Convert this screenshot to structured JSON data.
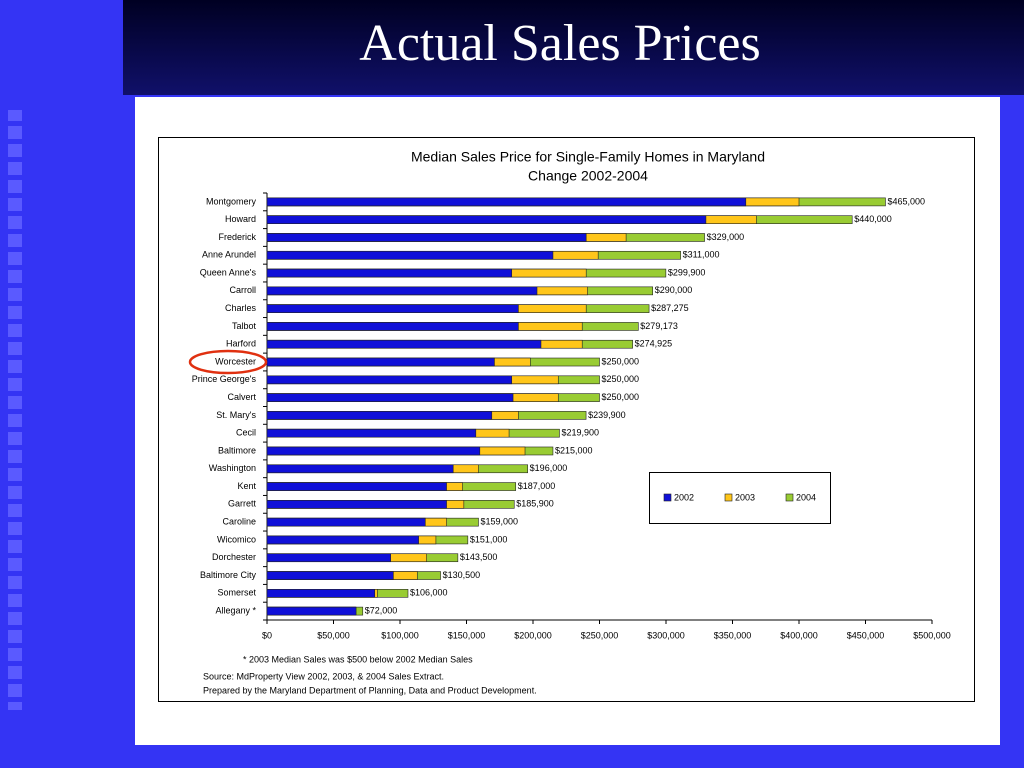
{
  "slide_title": "Actual Sales Prices",
  "chart_data": {
    "type": "bar",
    "orientation": "horizontal",
    "title": [
      "Median Sales Price for Single-Family Homes in Maryland",
      "Change 2002-2004"
    ],
    "categories": [
      "Montgomery",
      "Howard",
      "Frederick",
      "Anne Arundel",
      "Queen Anne's",
      "Carroll",
      "Charles",
      "Talbot",
      "Harford",
      "Worcester",
      "Prince George's",
      "Calvert",
      "St. Mary's",
      "Cecil",
      "Baltimore",
      "Washington",
      "Kent",
      "Garrett",
      "Caroline",
      "Wicomico",
      "Dorchester",
      "Baltimore City",
      "Somerset",
      "Allegany *"
    ],
    "series": [
      {
        "name": "2002",
        "color": "#1010d8",
        "values": [
          360000,
          330000,
          240000,
          215000,
          184000,
          203000,
          189000,
          189000,
          206000,
          171000,
          184000,
          185000,
          169000,
          157000,
          160000,
          140000,
          135000,
          135000,
          119000,
          114000,
          93000,
          95000,
          81000,
          67000
        ]
      },
      {
        "name": "2003",
        "color": "#ffc61a",
        "values": [
          400000,
          368000,
          270000,
          249000,
          240000,
          241000,
          240000,
          237000,
          237000,
          198000,
          219000,
          219000,
          189000,
          182000,
          194000,
          159000,
          147000,
          148000,
          135000,
          127000,
          120000,
          113000,
          83000,
          66500
        ]
      },
      {
        "name": "2004",
        "color": "#99cc33",
        "values": [
          465000,
          440000,
          329000,
          311000,
          299900,
          290000,
          287275,
          279173,
          274925,
          250000,
          250000,
          250000,
          239900,
          219900,
          215000,
          196000,
          187000,
          185900,
          159000,
          151000,
          143500,
          130500,
          106000,
          72000
        ],
        "value_labels": [
          "$465,000",
          "$440,000",
          "$329,000",
          "$311,000",
          "$299,900",
          "$290,000",
          "$287,275",
          "$279,173",
          "$274,925",
          "$250,000",
          "$250,000",
          "$250,000",
          "$239,900",
          "$219,900",
          "$215,000",
          "$196,000",
          "$187,000",
          "$185,900",
          "$159,000",
          "$151,000",
          "$143,500",
          "$130,500",
          "$106,000",
          "$72,000"
        ]
      }
    ],
    "xlim": [
      0,
      500000
    ],
    "xticks": [
      {
        "value": 0,
        "label": "$0"
      },
      {
        "value": 50000,
        "label": "$50,000"
      },
      {
        "value": 100000,
        "label": "$100,000"
      },
      {
        "value": 150000,
        "label": "$150,000"
      },
      {
        "value": 200000,
        "label": "$200,000"
      },
      {
        "value": 250000,
        "label": "$250,000"
      },
      {
        "value": 300000,
        "label": "$300,000"
      },
      {
        "value": 350000,
        "label": "$350,000"
      },
      {
        "value": 400000,
        "label": "$400,000"
      },
      {
        "value": 450000,
        "label": "$450,000"
      },
      {
        "value": 500000,
        "label": "$500,000"
      }
    ],
    "notes": [
      "* 2003 Median Sales was $500 below 2002 Median Sales",
      "Source: MdProperty View 2002, 2003, & 2004 Sales Extract.",
      "Prepared by the Maryland Department of Planning, Data and Product Development."
    ]
  }
}
